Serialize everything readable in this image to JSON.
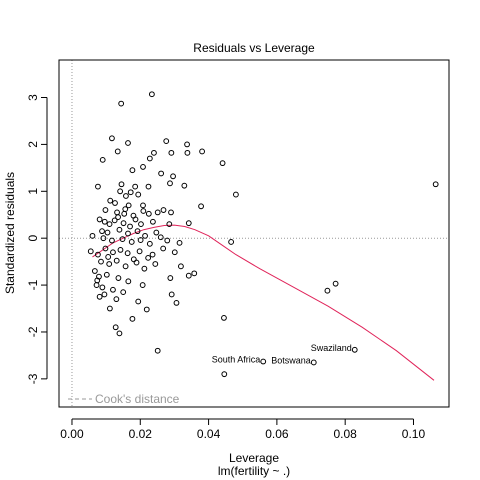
{
  "chart_data": {
    "type": "scatter",
    "title": "Residuals vs Leverage",
    "xlabel": "Leverage",
    "subtitle": "lm(fertility ~ .)",
    "ylabel": "Standardized residuals",
    "xlim": [
      -0.0038,
      0.1104
    ],
    "ylim": [
      -3.6,
      3.8
    ],
    "xticks": [
      {
        "value": 0.0,
        "label": "0.00"
      },
      {
        "value": 0.02,
        "label": "0.02"
      },
      {
        "value": 0.04,
        "label": "0.04"
      },
      {
        "value": 0.06,
        "label": "0.06"
      },
      {
        "value": 0.08,
        "label": "0.08"
      },
      {
        "value": 0.1,
        "label": "0.10"
      }
    ],
    "yticks": [
      {
        "value": -3,
        "label": "-3"
      },
      {
        "value": -2,
        "label": "-2"
      },
      {
        "value": -1,
        "label": "-1"
      },
      {
        "value": 0,
        "label": "0"
      },
      {
        "value": 1,
        "label": "1"
      },
      {
        "value": 2,
        "label": "2"
      },
      {
        "value": 3,
        "label": "3"
      }
    ],
    "reference_lines": {
      "h": 0,
      "v": 0,
      "style": "dotted",
      "color": "#999999"
    },
    "legend": {
      "text": "Cook's distance",
      "position": "bottom-left",
      "line_style": "dashed",
      "color": "#999999"
    },
    "point_color": "#000000",
    "smooth_color": "#e0245a",
    "points": [
      {
        "x": 0.0234,
        "y": 3.07
      },
      {
        "x": 0.0144,
        "y": 2.87
      },
      {
        "x": 0.0117,
        "y": 2.13
      },
      {
        "x": 0.0276,
        "y": 2.07
      },
      {
        "x": 0.0337,
        "y": 2.0
      },
      {
        "x": 0.0164,
        "y": 2.03
      },
      {
        "x": 0.0134,
        "y": 1.85
      },
      {
        "x": 0.024,
        "y": 1.82
      },
      {
        "x": 0.0291,
        "y": 1.82
      },
      {
        "x": 0.0338,
        "y": 1.82
      },
      {
        "x": 0.0381,
        "y": 1.85
      },
      {
        "x": 0.0441,
        "y": 1.6
      },
      {
        "x": 0.009,
        "y": 1.67
      },
      {
        "x": 0.0228,
        "y": 1.7
      },
      {
        "x": 0.0208,
        "y": 1.52
      },
      {
        "x": 0.0177,
        "y": 1.45
      },
      {
        "x": 0.0261,
        "y": 1.38
      },
      {
        "x": 0.0296,
        "y": 1.32
      },
      {
        "x": 0.0145,
        "y": 1.15
      },
      {
        "x": 0.0076,
        "y": 1.1
      },
      {
        "x": 0.0185,
        "y": 1.1
      },
      {
        "x": 0.0287,
        "y": 1.17
      },
      {
        "x": 0.0329,
        "y": 1.12
      },
      {
        "x": 0.0224,
        "y": 1.1
      },
      {
        "x": 0.0141,
        "y": 1.0
      },
      {
        "x": 0.0172,
        "y": 0.98
      },
      {
        "x": 0.0158,
        "y": 0.9
      },
      {
        "x": 0.048,
        "y": 0.93
      },
      {
        "x": 0.1065,
        "y": 1.15
      },
      {
        "x": 0.0194,
        "y": 0.93
      },
      {
        "x": 0.0112,
        "y": 0.8
      },
      {
        "x": 0.0126,
        "y": 0.75
      },
      {
        "x": 0.0166,
        "y": 0.7
      },
      {
        "x": 0.0208,
        "y": 0.7
      },
      {
        "x": 0.0378,
        "y": 0.68
      },
      {
        "x": 0.0098,
        "y": 0.6
      },
      {
        "x": 0.0132,
        "y": 0.55
      },
      {
        "x": 0.0153,
        "y": 0.52
      },
      {
        "x": 0.018,
        "y": 0.48
      },
      {
        "x": 0.0209,
        "y": 0.58
      },
      {
        "x": 0.0225,
        "y": 0.52
      },
      {
        "x": 0.0251,
        "y": 0.55
      },
      {
        "x": 0.0268,
        "y": 0.6
      },
      {
        "x": 0.029,
        "y": 0.55
      },
      {
        "x": 0.0081,
        "y": 0.4
      },
      {
        "x": 0.0096,
        "y": 0.35
      },
      {
        "x": 0.011,
        "y": 0.3
      },
      {
        "x": 0.0125,
        "y": 0.38
      },
      {
        "x": 0.0151,
        "y": 0.32
      },
      {
        "x": 0.017,
        "y": 0.25
      },
      {
        "x": 0.0186,
        "y": 0.4
      },
      {
        "x": 0.0202,
        "y": 0.3
      },
      {
        "x": 0.0237,
        "y": 0.35
      },
      {
        "x": 0.0285,
        "y": 0.3
      },
      {
        "x": 0.0342,
        "y": 0.32
      },
      {
        "x": 0.0088,
        "y": 0.15
      },
      {
        "x": 0.0104,
        "y": 0.12
      },
      {
        "x": 0.0139,
        "y": 0.18
      },
      {
        "x": 0.0164,
        "y": 0.1
      },
      {
        "x": 0.0192,
        "y": 0.15
      },
      {
        "x": 0.0214,
        "y": 0.05
      },
      {
        "x": 0.0247,
        "y": 0.12
      },
      {
        "x": 0.026,
        "y": 0.02
      },
      {
        "x": 0.0092,
        "y": 0.0
      },
      {
        "x": 0.0117,
        "y": -0.05
      },
      {
        "x": 0.0148,
        "y": -0.02
      },
      {
        "x": 0.0175,
        "y": -0.08
      },
      {
        "x": 0.0201,
        "y": -0.04
      },
      {
        "x": 0.0228,
        "y": -0.12
      },
      {
        "x": 0.0279,
        "y": -0.05
      },
      {
        "x": 0.0315,
        "y": -0.1
      },
      {
        "x": 0.0466,
        "y": -0.08
      },
      {
        "x": 0.0055,
        "y": -0.28
      },
      {
        "x": 0.0076,
        "y": -0.35
      },
      {
        "x": 0.0098,
        "y": -0.22
      },
      {
        "x": 0.012,
        "y": -0.3
      },
      {
        "x": 0.0142,
        "y": -0.25
      },
      {
        "x": 0.0163,
        "y": -0.32
      },
      {
        "x": 0.0198,
        "y": -0.28
      },
      {
        "x": 0.0236,
        "y": -0.35
      },
      {
        "x": 0.0267,
        "y": -0.22
      },
      {
        "x": 0.0301,
        "y": -0.3
      },
      {
        "x": 0.0085,
        "y": -0.5
      },
      {
        "x": 0.0109,
        "y": -0.55
      },
      {
        "x": 0.0131,
        "y": -0.48
      },
      {
        "x": 0.0157,
        "y": -0.6
      },
      {
        "x": 0.0189,
        "y": -0.52
      },
      {
        "x": 0.0212,
        "y": -0.65
      },
      {
        "x": 0.0244,
        "y": -0.55
      },
      {
        "x": 0.0319,
        "y": -0.6
      },
      {
        "x": 0.0358,
        "y": -0.75
      },
      {
        "x": 0.0067,
        "y": -0.7
      },
      {
        "x": 0.0079,
        "y": -0.82
      },
      {
        "x": 0.0102,
        "y": -0.78
      },
      {
        "x": 0.0136,
        "y": -0.85
      },
      {
        "x": 0.0165,
        "y": -0.92
      },
      {
        "x": 0.0288,
        "y": -0.85
      },
      {
        "x": 0.0342,
        "y": -0.8
      },
      {
        "x": 0.0072,
        "y": -1.0
      },
      {
        "x": 0.0089,
        "y": -1.05
      },
      {
        "x": 0.012,
        "y": -1.1
      },
      {
        "x": 0.015,
        "y": -1.15
      },
      {
        "x": 0.0207,
        "y": -1.0
      },
      {
        "x": 0.0292,
        "y": -1.2
      },
      {
        "x": 0.0081,
        "y": -1.25
      },
      {
        "x": 0.013,
        "y": -1.3
      },
      {
        "x": 0.0194,
        "y": -1.35
      },
      {
        "x": 0.0306,
        "y": -1.38
      },
      {
        "x": 0.0111,
        "y": -1.5
      },
      {
        "x": 0.0219,
        "y": -1.52
      },
      {
        "x": 0.0445,
        "y": -1.7
      },
      {
        "x": 0.0177,
        "y": -1.72
      },
      {
        "x": 0.0128,
        "y": -1.9
      },
      {
        "x": 0.0139,
        "y": -2.03
      },
      {
        "x": 0.0748,
        "y": -1.12
      },
      {
        "x": 0.0772,
        "y": -0.97
      },
      {
        "x": 0.0251,
        "y": -2.4
      },
      {
        "x": 0.006,
        "y": 0.05
      },
      {
        "x": 0.0106,
        "y": -0.4
      },
      {
        "x": 0.0181,
        "y": -0.45
      },
      {
        "x": 0.0223,
        "y": -0.42
      },
      {
        "x": 0.0156,
        "y": 0.62
      },
      {
        "x": 0.0135,
        "y": 0.45
      },
      {
        "x": 0.0074,
        "y": -0.9
      },
      {
        "x": 0.0095,
        "y": -1.2
      }
    ],
    "labeled_points": [
      {
        "name": "Swaziland",
        "x": 0.0828,
        "y": -2.38
      },
      {
        "name": "Botswana",
        "x": 0.0708,
        "y": -2.65
      },
      {
        "name": "South Africa",
        "x": 0.056,
        "y": -2.63
      },
      {
        "name": "",
        "x": 0.0446,
        "y": -2.9
      }
    ],
    "smooth_line": [
      [
        0.006,
        -0.4
      ],
      [
        0.008,
        -0.3
      ],
      [
        0.01,
        -0.2
      ],
      [
        0.012,
        -0.1
      ],
      [
        0.015,
        0.0
      ],
      [
        0.018,
        0.1
      ],
      [
        0.021,
        0.18
      ],
      [
        0.024,
        0.23
      ],
      [
        0.027,
        0.27
      ],
      [
        0.03,
        0.28
      ],
      [
        0.033,
        0.25
      ],
      [
        0.036,
        0.18
      ],
      [
        0.04,
        0.05
      ],
      [
        0.044,
        -0.15
      ],
      [
        0.048,
        -0.35
      ],
      [
        0.055,
        -0.65
      ],
      [
        0.065,
        -1.05
      ],
      [
        0.075,
        -1.45
      ],
      [
        0.085,
        -1.9
      ],
      [
        0.095,
        -2.4
      ],
      [
        0.106,
        -3.03
      ]
    ]
  }
}
